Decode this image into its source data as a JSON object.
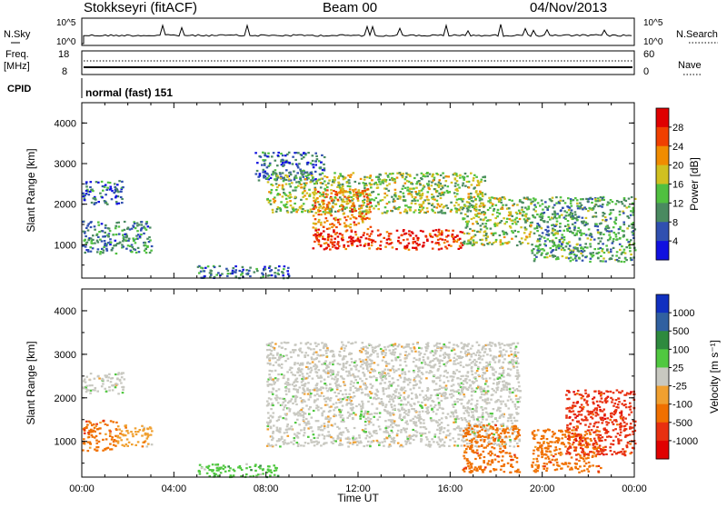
{
  "header": {
    "station": "Stokkseyri (fitACF)",
    "beam": "Beam 00",
    "date": "04/Nov/2013"
  },
  "status_panels": {
    "nsky_label": "N.Sky",
    "nsky_ticks": [
      "10^5",
      "10^0"
    ],
    "nsearch_label": "N.Search",
    "nsearch_ticks": [
      "10^5",
      "10^0"
    ],
    "freq_label": "Freq.",
    "freq_unit": "[MHz]",
    "freq_ticks": [
      "18",
      "8"
    ],
    "nave_label": "Nave",
    "nave_ticks": [
      "60",
      "0"
    ],
    "cpid_label": "CPID",
    "cpid_value": "normal (fast) 151"
  },
  "chart_data": [
    {
      "type": "heatmap",
      "title": "",
      "xlabel": "",
      "ylabel": "Slant Range [km]",
      "xlim": [
        "00:00",
        "24:00"
      ],
      "ylim": [
        180,
        4500
      ],
      "y_ticks": [
        "1000",
        "2000",
        "3000",
        "4000"
      ],
      "colorbar": {
        "label": "Power [dB]",
        "ticks": [
          "4",
          "8",
          "12",
          "16",
          "20",
          "24",
          "28"
        ],
        "colors": [
          "#1010e0",
          "#3050b0",
          "#4a8a60",
          "#50c040",
          "#d0c020",
          "#f08c00",
          "#f04000",
          "#e00000"
        ]
      },
      "echo_regions": [
        {
          "t_start": 0.0,
          "t_end": 3.0,
          "r_low": 800,
          "r_high": 1600,
          "power_db": 8
        },
        {
          "t_start": 0.0,
          "t_end": 1.8,
          "r_low": 2000,
          "r_high": 2600,
          "power_db": 6
        },
        {
          "t_start": 7.5,
          "t_end": 10.5,
          "r_low": 2600,
          "r_high": 3300,
          "power_db": 6
        },
        {
          "t_start": 8.0,
          "t_end": 17.5,
          "r_low": 1800,
          "r_high": 2800,
          "power_db": 14
        },
        {
          "t_start": 10.0,
          "t_end": 12.5,
          "r_low": 1400,
          "r_high": 2400,
          "power_db": 22
        },
        {
          "t_start": 10.0,
          "t_end": 16.5,
          "r_low": 900,
          "r_high": 1400,
          "power_db": 28
        },
        {
          "t_start": 16.5,
          "t_end": 19.5,
          "r_low": 1000,
          "r_high": 2200,
          "power_db": 14
        },
        {
          "t_start": 19.5,
          "t_end": 24.0,
          "r_low": 600,
          "r_high": 2200,
          "power_db": 10
        },
        {
          "t_start": 5.0,
          "t_end": 9.0,
          "r_low": 200,
          "r_high": 500,
          "power_db": 6
        }
      ]
    },
    {
      "type": "heatmap",
      "title": "",
      "xlabel": "Time UT",
      "ylabel": "Slant Range [km]",
      "xlim": [
        "00:00",
        "24:00"
      ],
      "x_ticks": [
        "00:00",
        "04:00",
        "08:00",
        "12:00",
        "16:00",
        "20:00",
        "00:00"
      ],
      "ylim": [
        180,
        4500
      ],
      "y_ticks": [
        "1000",
        "2000",
        "3000",
        "4000"
      ],
      "colorbar": {
        "label": "Velocity [m s⁻¹]",
        "ticks": [
          "1000",
          "500",
          "100",
          "25",
          "-25",
          "-100",
          "-500",
          "-1000"
        ],
        "colors": [
          "#1030c0",
          "#3060a0",
          "#2e8a3e",
          "#50c840",
          "#c8c8c0",
          "#f0a030",
          "#f07000",
          "#e83010",
          "#e00000"
        ]
      },
      "echo_regions": [
        {
          "t_start": 0.0,
          "t_end": 1.5,
          "r_low": 800,
          "r_high": 1500,
          "velocity": -300
        },
        {
          "t_start": 1.5,
          "t_end": 3.0,
          "r_low": 900,
          "r_high": 1400,
          "velocity": -50
        },
        {
          "t_start": 0.0,
          "t_end": 1.8,
          "r_low": 2100,
          "r_high": 2600,
          "velocity": 0
        },
        {
          "t_start": 8.0,
          "t_end": 19.0,
          "r_low": 900,
          "r_high": 3300,
          "velocity": 0
        },
        {
          "t_start": 16.5,
          "t_end": 19.0,
          "r_low": 300,
          "r_high": 1400,
          "velocity": -300
        },
        {
          "t_start": 19.5,
          "t_end": 22.5,
          "r_low": 300,
          "r_high": 1300,
          "velocity": -300
        },
        {
          "t_start": 21.0,
          "t_end": 24.0,
          "r_low": 700,
          "r_high": 2200,
          "velocity": -600
        },
        {
          "t_start": 5.0,
          "t_end": 8.5,
          "r_low": 200,
          "r_high": 500,
          "velocity": 60
        }
      ]
    }
  ]
}
